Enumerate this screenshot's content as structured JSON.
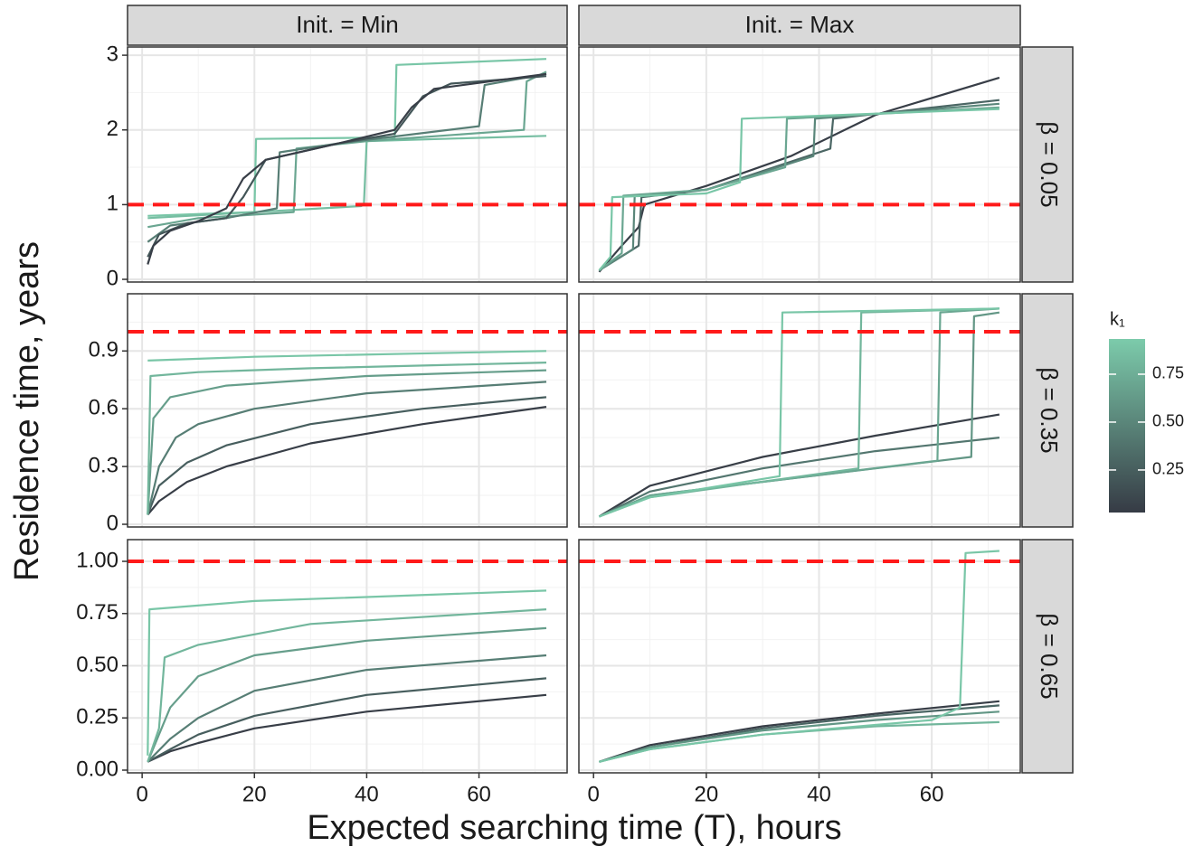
{
  "chart_data": [
    {
      "type": "line",
      "xlim": [
        -2.6,
        75.7
      ],
      "xticks": [
        0,
        20,
        40,
        60
      ],
      "ylim": [
        -0.036,
        3.11
      ],
      "yticks": [
        0,
        1,
        2,
        3
      ],
      "hline": 1,
      "series": [
        {
          "k1": 0.9,
          "x": [
            1,
            20,
            20.3,
            45,
            45.3,
            72
          ],
          "values": [
            0.85,
            0.9,
            1.88,
            1.9,
            2.87,
            2.95
          ]
        },
        {
          "k1": 0.85,
          "x": [
            1,
            39,
            39.5,
            40,
            72
          ],
          "values": [
            0.82,
            0.98,
            1.0,
            1.85,
            1.92
          ]
        },
        {
          "k1": 0.7,
          "x": [
            1,
            10,
            27,
            27.5,
            40,
            68,
            68.5,
            72
          ],
          "values": [
            0.7,
            0.82,
            0.9,
            1.75,
            1.85,
            2.0,
            2.65,
            2.78
          ]
        },
        {
          "k1": 0.45,
          "x": [
            1,
            5,
            15,
            24,
            24.5,
            35,
            60,
            61,
            72
          ],
          "values": [
            0.5,
            0.72,
            0.82,
            0.95,
            1.7,
            1.82,
            2.05,
            2.6,
            2.75
          ]
        },
        {
          "k1": 0.2,
          "x": [
            1,
            3,
            8,
            15,
            18,
            22,
            35,
            45,
            50,
            55,
            72
          ],
          "values": [
            0.3,
            0.6,
            0.75,
            0.82,
            1.1,
            1.6,
            1.82,
            1.95,
            2.45,
            2.62,
            2.72
          ]
        },
        {
          "k1": 0.05,
          "x": [
            1,
            2,
            5,
            10,
            15,
            18,
            22,
            35,
            45,
            48,
            52,
            72
          ],
          "values": [
            0.2,
            0.45,
            0.65,
            0.78,
            0.95,
            1.35,
            1.6,
            1.82,
            2.0,
            2.3,
            2.55,
            2.75
          ]
        }
      ]
    },
    {
      "type": "line",
      "xlim": [
        -2.6,
        75.7
      ],
      "xticks": [
        0,
        20,
        40,
        60
      ],
      "ylim": [
        -0.036,
        3.11
      ],
      "yticks": [
        0,
        1,
        2,
        3
      ],
      "hline": 1,
      "series": [
        {
          "k1": 0.05,
          "x": [
            1,
            5,
            8,
            9,
            20,
            35,
            50,
            72
          ],
          "values": [
            0.1,
            0.45,
            0.7,
            1.0,
            1.25,
            1.65,
            2.2,
            2.7
          ]
        },
        {
          "k1": 0.3,
          "x": [
            1,
            8,
            8.5,
            20,
            42,
            42.5,
            72
          ],
          "values": [
            0.12,
            0.45,
            1.1,
            1.2,
            1.75,
            2.15,
            2.4
          ]
        },
        {
          "k1": 0.5,
          "x": [
            1,
            7,
            7.3,
            20,
            39,
            39.3,
            72
          ],
          "values": [
            0.12,
            0.4,
            1.12,
            1.2,
            1.65,
            2.15,
            2.35
          ]
        },
        {
          "k1": 0.7,
          "x": [
            1,
            5,
            5.3,
            20,
            34,
            34.3,
            72
          ],
          "values": [
            0.12,
            0.35,
            1.12,
            1.2,
            1.5,
            2.15,
            2.3
          ]
        },
        {
          "k1": 0.9,
          "x": [
            1,
            3,
            3.3,
            20,
            26,
            26.3,
            72
          ],
          "values": [
            0.12,
            0.3,
            1.1,
            1.15,
            1.3,
            2.15,
            2.28
          ]
        }
      ]
    },
    {
      "type": "line",
      "xlim": [
        -2.6,
        75.7
      ],
      "xticks": [
        0,
        20,
        40,
        60
      ],
      "ylim": [
        -0.014,
        1.197
      ],
      "yticks": [
        0,
        0.3,
        0.6,
        0.9
      ],
      "hline": 1,
      "series": [
        {
          "k1": 0.05,
          "x": [
            1,
            3,
            8,
            15,
            30,
            50,
            72
          ],
          "values": [
            0.05,
            0.12,
            0.22,
            0.3,
            0.42,
            0.52,
            0.61
          ]
        },
        {
          "k1": 0.25,
          "x": [
            1,
            3,
            8,
            15,
            30,
            50,
            72
          ],
          "values": [
            0.05,
            0.2,
            0.32,
            0.41,
            0.52,
            0.6,
            0.66
          ]
        },
        {
          "k1": 0.45,
          "x": [
            1,
            3,
            6,
            10,
            20,
            40,
            72
          ],
          "values": [
            0.05,
            0.3,
            0.45,
            0.52,
            0.6,
            0.68,
            0.74
          ]
        },
        {
          "k1": 0.65,
          "x": [
            1,
            2,
            5,
            15,
            40,
            72
          ],
          "values": [
            0.05,
            0.55,
            0.66,
            0.72,
            0.77,
            0.8
          ]
        },
        {
          "k1": 0.8,
          "x": [
            1,
            1.5,
            10,
            30,
            72
          ],
          "values": [
            0.05,
            0.77,
            0.79,
            0.81,
            0.84
          ]
        },
        {
          "k1": 0.9,
          "x": [
            1,
            20,
            72
          ],
          "values": [
            0.85,
            0.87,
            0.9
          ]
        }
      ]
    },
    {
      "type": "line",
      "xlim": [
        -2.6,
        75.7
      ],
      "xticks": [
        0,
        20,
        40,
        60
      ],
      "ylim": [
        -0.014,
        1.197
      ],
      "yticks": [
        0,
        0.3,
        0.6,
        0.9
      ],
      "hline": 1,
      "series": [
        {
          "k1": 0.05,
          "x": [
            1,
            10,
            30,
            50,
            72
          ],
          "values": [
            0.04,
            0.2,
            0.35,
            0.46,
            0.57
          ]
        },
        {
          "k1": 0.4,
          "x": [
            1,
            10,
            30,
            50,
            72
          ],
          "values": [
            0.04,
            0.17,
            0.29,
            0.38,
            0.45
          ]
        },
        {
          "k1": 0.6,
          "x": [
            1,
            10,
            67,
            67.5,
            72
          ],
          "values": [
            0.04,
            0.15,
            0.35,
            1.08,
            1.1
          ]
        },
        {
          "k1": 0.7,
          "x": [
            1,
            10,
            61,
            61.5,
            72
          ],
          "values": [
            0.04,
            0.15,
            0.33,
            1.1,
            1.12
          ]
        },
        {
          "k1": 0.8,
          "x": [
            1,
            10,
            47,
            47.5,
            72
          ],
          "values": [
            0.04,
            0.14,
            0.29,
            1.1,
            1.12
          ]
        },
        {
          "k1": 0.9,
          "x": [
            1,
            10,
            33,
            33.5,
            72
          ],
          "values": [
            0.04,
            0.14,
            0.25,
            1.1,
            1.12
          ]
        }
      ]
    },
    {
      "type": "line",
      "xlim": [
        -2.6,
        75.7
      ],
      "xticks": [
        0,
        20,
        40,
        60
      ],
      "ylim": [
        -0.013,
        1.104
      ],
      "yticks": [
        {
          "value": 0,
          "label": "0.00"
        },
        {
          "value": 0.25,
          "label": "0.25"
        },
        {
          "value": 0.5,
          "label": "0.50"
        },
        {
          "value": 0.75,
          "label": "0.75"
        },
        {
          "value": 1,
          "label": "1.00"
        }
      ],
      "hline": 1,
      "series": [
        {
          "k1": 0.05,
          "x": [
            1,
            5,
            10,
            20,
            40,
            72
          ],
          "values": [
            0.04,
            0.09,
            0.13,
            0.2,
            0.28,
            0.36
          ]
        },
        {
          "k1": 0.25,
          "x": [
            1,
            5,
            10,
            20,
            40,
            72
          ],
          "values": [
            0.04,
            0.1,
            0.17,
            0.26,
            0.36,
            0.44
          ]
        },
        {
          "k1": 0.45,
          "x": [
            1,
            5,
            10,
            20,
            40,
            72
          ],
          "values": [
            0.04,
            0.15,
            0.25,
            0.38,
            0.48,
            0.55
          ]
        },
        {
          "k1": 0.65,
          "x": [
            1,
            5,
            10,
            20,
            40,
            72
          ],
          "values": [
            0.04,
            0.3,
            0.45,
            0.55,
            0.62,
            0.68
          ]
        },
        {
          "k1": 0.8,
          "x": [
            1,
            3,
            4,
            10,
            30,
            72
          ],
          "values": [
            0.04,
            0.2,
            0.54,
            0.6,
            0.7,
            0.77
          ]
        },
        {
          "k1": 0.9,
          "x": [
            1,
            1.3,
            20,
            72
          ],
          "values": [
            0.07,
            0.77,
            0.81,
            0.86
          ]
        }
      ]
    },
    {
      "type": "line",
      "xlim": [
        -2.6,
        75.7
      ],
      "xticks": [
        0,
        20,
        40,
        60
      ],
      "ylim": [
        -0.013,
        1.104
      ],
      "yticks": [
        {
          "value": 0,
          "label": "0.00"
        },
        {
          "value": 0.25,
          "label": "0.25"
        },
        {
          "value": 0.5,
          "label": "0.50"
        },
        {
          "value": 0.75,
          "label": "0.75"
        },
        {
          "value": 1,
          "label": "1.00"
        }
      ],
      "hline": 1,
      "series": [
        {
          "k1": 0.05,
          "x": [
            1,
            10,
            30,
            50,
            72
          ],
          "values": [
            0.04,
            0.12,
            0.21,
            0.27,
            0.33
          ]
        },
        {
          "k1": 0.3,
          "x": [
            1,
            10,
            30,
            50,
            72
          ],
          "values": [
            0.04,
            0.11,
            0.2,
            0.26,
            0.31
          ]
        },
        {
          "k1": 0.6,
          "x": [
            1,
            10,
            30,
            50,
            72
          ],
          "values": [
            0.04,
            0.11,
            0.19,
            0.24,
            0.28
          ]
        },
        {
          "k1": 0.8,
          "x": [
            1,
            10,
            30,
            50,
            72
          ],
          "values": [
            0.04,
            0.1,
            0.17,
            0.21,
            0.23
          ]
        },
        {
          "k1": 0.9,
          "x": [
            1,
            10,
            30,
            60,
            65,
            66,
            72
          ],
          "values": [
            0.04,
            0.1,
            0.17,
            0.24,
            0.3,
            1.04,
            1.05
          ]
        }
      ]
    }
  ],
  "columns": [
    "Init. = Min",
    "Init. = Max"
  ],
  "rows": [
    "β = 0.05",
    "β = 0.35",
    "β = 0.65"
  ],
  "x_label": "Expected searching time (T), hours",
  "y_label": "Residence time, years",
  "hline_color": "#ff1a1a",
  "colorbar": {
    "title": "k₁",
    "lim": [
      0.028,
      0.934
    ],
    "colors": [
      "#363b45",
      "#7ccbab"
    ],
    "ticks": [
      {
        "value": 0.25,
        "label": "0.25"
      },
      {
        "value": 0.5,
        "label": "0.50"
      },
      {
        "value": 0.75,
        "label": "0.75"
      }
    ]
  }
}
